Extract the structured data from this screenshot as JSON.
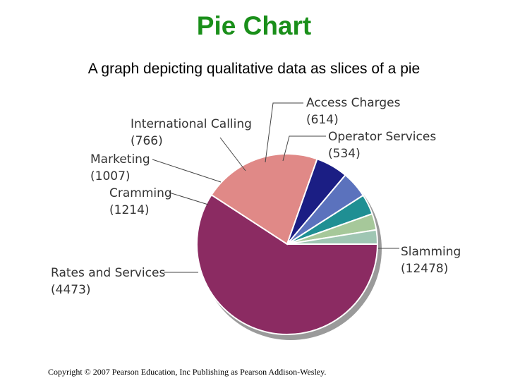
{
  "header": {
    "title": "Pie Chart",
    "subtitle": "A graph depicting qualitative data as slices of a pie"
  },
  "footer": {
    "copyright": "Copyright © 2007 Pearson Education, Inc Publishing as Pearson Addison-Wesley."
  },
  "colors": {
    "title": "#1a8f1a",
    "shadow": "#9a9a9a"
  },
  "chart_data": {
    "type": "pie",
    "title": "",
    "slices": [
      {
        "label": "Slamming",
        "value": 12478,
        "value_text": "(12478)",
        "color": "#8b2b62"
      },
      {
        "label": "Rates and Services",
        "value": 4473,
        "value_text": "(4473)",
        "color": "#e08987"
      },
      {
        "label": "Cramming",
        "value": 1214,
        "value_text": "(1214)",
        "color": "#1b1e84"
      },
      {
        "label": "Marketing",
        "value": 1007,
        "value_text": "(1007)",
        "color": "#5b72bd"
      },
      {
        "label": "International Calling",
        "value": 766,
        "value_text": "(766)",
        "color": "#1f8f93"
      },
      {
        "label": "Access Charges",
        "value": 614,
        "value_text": "(614)",
        "color": "#a6c89a"
      },
      {
        "label": "Operator Services",
        "value": 534,
        "value_text": "(534)",
        "color": "#9fc6b3"
      }
    ]
  }
}
